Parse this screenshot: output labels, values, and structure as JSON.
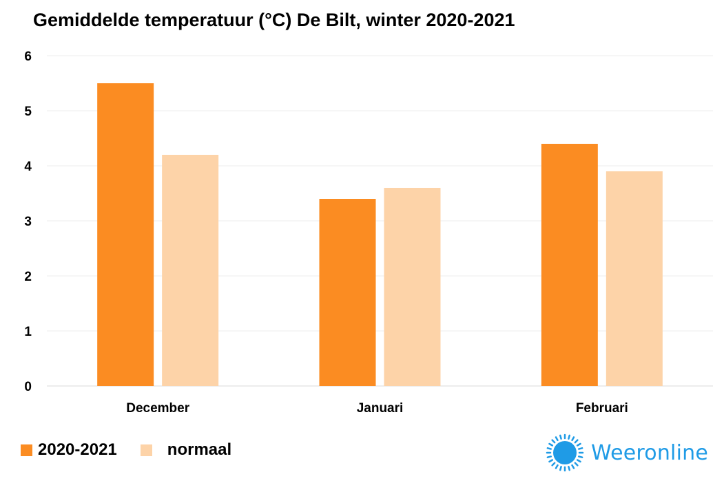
{
  "chart_data": {
    "type": "bar",
    "title": "Gemiddelde temperatuur (°C) De Bilt, winter 2020-2021",
    "categories": [
      "December",
      "Januari",
      "Februari"
    ],
    "series": [
      {
        "name": "2020-2021",
        "values": [
          5.5,
          3.4,
          4.4
        ],
        "color": "#fb8c22"
      },
      {
        "name": "normaal",
        "values": [
          4.2,
          3.6,
          3.9
        ],
        "color": "#fdd3a8"
      }
    ],
    "ylim": [
      0,
      6
    ],
    "yticks": [
      "0",
      "1",
      "2",
      "3",
      "4",
      "5",
      "6"
    ],
    "grid": true,
    "legend_position": "bottom-left"
  },
  "brand": {
    "name": "Weeronline",
    "color": "#1f9be6",
    "icon": "sun-icon"
  }
}
